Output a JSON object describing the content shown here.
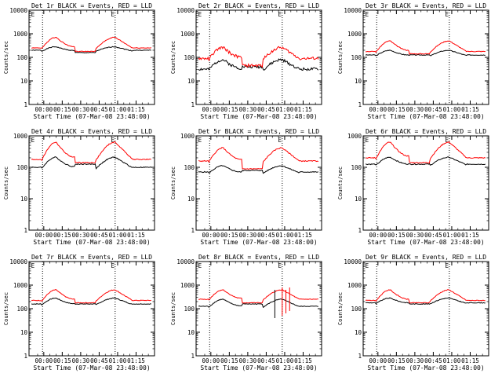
{
  "chart_data": [
    {
      "type": "line",
      "title": "Det 1r BLACK = Events, RED = LLD",
      "xlabel": "Start Time (07-Mar-08 23:48:00)",
      "ylabel": "Counts/sec",
      "yscale": "log",
      "ylim": [
        1,
        10000
      ],
      "x_ticks": [
        "00:00",
        "00:15",
        "00:30",
        "00:45",
        "01:00",
        "01:15"
      ],
      "y_ticks": [
        "1",
        "10",
        "100",
        "1000",
        "10000"
      ],
      "markers": [
        "E",
        "E"
      ],
      "series": [
        {
          "name": "BLACK = Events",
          "color": "#000000"
        },
        {
          "name": "RED = LLD",
          "color": "#ff0000"
        }
      ]
    },
    {
      "type": "line",
      "title": "Det 2r BLACK = Events, RED = LLD",
      "xlabel": "Start Time (07-Mar-08 23:48:00)",
      "ylabel": "Counts/sec",
      "yscale": "log",
      "ylim": [
        1,
        10000
      ],
      "x_ticks": [
        "00:00",
        "00:15",
        "00:30",
        "00:45",
        "01:00",
        "01:15"
      ],
      "y_ticks": [
        "1",
        "10",
        "100",
        "1000",
        "10000"
      ],
      "markers": [
        "E",
        "E"
      ],
      "series": [
        {
          "name": "BLACK = Events",
          "color": "#000000"
        },
        {
          "name": "RED = LLD",
          "color": "#ff0000"
        }
      ]
    },
    {
      "type": "line",
      "title": "Det 3r BLACK = Events, RED = LLD",
      "xlabel": "Start Time (07-Mar-08 23:48:00)",
      "ylabel": "Counts/sec",
      "yscale": "log",
      "ylim": [
        1,
        10000
      ],
      "x_ticks": [
        "00:00",
        "00:15",
        "00:30",
        "00:45",
        "01:00",
        "01:15"
      ],
      "y_ticks": [
        "1",
        "10",
        "100",
        "1000",
        "10000"
      ],
      "markers": [
        "E",
        "E"
      ],
      "series": [
        {
          "name": "BLACK = Events",
          "color": "#000000"
        },
        {
          "name": "RED = LLD",
          "color": "#ff0000"
        }
      ]
    },
    {
      "type": "line",
      "title": "Det 4r BLACK = Events, RED = LLD",
      "xlabel": "Start Time (07-Mar-08 23:48:00)",
      "ylabel": "Counts/sec",
      "yscale": "log",
      "ylim": [
        1,
        1000
      ],
      "x_ticks": [
        "00:00",
        "00:15",
        "00:30",
        "00:45",
        "01:00",
        "01:15"
      ],
      "y_ticks": [
        "1",
        "10",
        "100",
        "1000"
      ],
      "markers": [
        "E",
        "E"
      ],
      "series": [
        {
          "name": "BLACK = Events",
          "color": "#000000"
        },
        {
          "name": "RED = LLD",
          "color": "#ff0000"
        }
      ]
    },
    {
      "type": "line",
      "title": "Det 5r BLACK = Events, RED = LLD",
      "xlabel": "Start Time (07-Mar-08 23:48:00)",
      "ylabel": "Counts/sec",
      "yscale": "log",
      "ylim": [
        1,
        1000
      ],
      "x_ticks": [
        "00:00",
        "00:15",
        "00:30",
        "00:45",
        "01:00",
        "01:15"
      ],
      "y_ticks": [
        "1",
        "10",
        "100",
        "1000"
      ],
      "markers": [
        "E",
        "E"
      ],
      "series": [
        {
          "name": "BLACK = Events",
          "color": "#000000"
        },
        {
          "name": "RED = LLD",
          "color": "#ff0000"
        }
      ]
    },
    {
      "type": "line",
      "title": "Det 6r BLACK = Events, RED = LLD",
      "xlabel": "Start Time (07-Mar-08 23:48:00)",
      "ylabel": "Counts/sec",
      "yscale": "log",
      "ylim": [
        1,
        1000
      ],
      "x_ticks": [
        "00:00",
        "00:15",
        "00:30",
        "00:45",
        "01:00",
        "01:15"
      ],
      "y_ticks": [
        "1",
        "10",
        "100",
        "1000"
      ],
      "markers": [
        "E",
        "E"
      ],
      "series": [
        {
          "name": "BLACK = Events",
          "color": "#000000"
        },
        {
          "name": "RED = LLD",
          "color": "#ff0000"
        }
      ]
    },
    {
      "type": "line",
      "title": "Det 7r BLACK = Events, RED = LLD",
      "xlabel": "Start Time (07-Mar-08 23:48:00)",
      "ylabel": "Counts/sec",
      "yscale": "log",
      "ylim": [
        1,
        10000
      ],
      "x_ticks": [
        "00:00",
        "00:15",
        "00:30",
        "00:45",
        "01:00",
        "01:15"
      ],
      "y_ticks": [
        "1",
        "10",
        "100",
        "1000",
        "10000"
      ],
      "markers": [
        "E",
        "E"
      ],
      "series": [
        {
          "name": "BLACK = Events",
          "color": "#000000"
        },
        {
          "name": "RED = LLD",
          "color": "#ff0000"
        }
      ]
    },
    {
      "type": "line",
      "title": "Det 8r BLACK = Events, RED = LLD",
      "xlabel": "Start Time (07-Mar-08 23:48:00)",
      "ylabel": "Counts/sec",
      "yscale": "log",
      "ylim": [
        1,
        10000
      ],
      "x_ticks": [
        "00:00",
        "00:15",
        "00:30",
        "00:45",
        "01:00",
        "01:15"
      ],
      "y_ticks": [
        "1",
        "10",
        "100",
        "1000",
        "10000"
      ],
      "markers": [
        "E",
        "E"
      ],
      "series": [
        {
          "name": "BLACK = Events",
          "color": "#000000"
        },
        {
          "name": "RED = LLD",
          "color": "#ff0000"
        }
      ]
    },
    {
      "type": "line",
      "title": "Det 9r BLACK = Events, RED = LLD",
      "xlabel": "Start Time (07-Mar-08 23:48:00)",
      "ylabel": "Counts/sec",
      "yscale": "log",
      "ylim": [
        1,
        10000
      ],
      "x_ticks": [
        "00:00",
        "00:15",
        "00:30",
        "00:45",
        "01:00",
        "01:15"
      ],
      "y_ticks": [
        "1",
        "10",
        "100",
        "1000",
        "10000"
      ],
      "markers": [
        "E",
        "E"
      ],
      "series": [
        {
          "name": "BLACK = Events",
          "color": "#000000"
        },
        {
          "name": "RED = LLD",
          "color": "#ff0000"
        }
      ]
    }
  ],
  "colors": {
    "events": "#000000",
    "lld": "#ff0000",
    "axis": "#000000"
  }
}
